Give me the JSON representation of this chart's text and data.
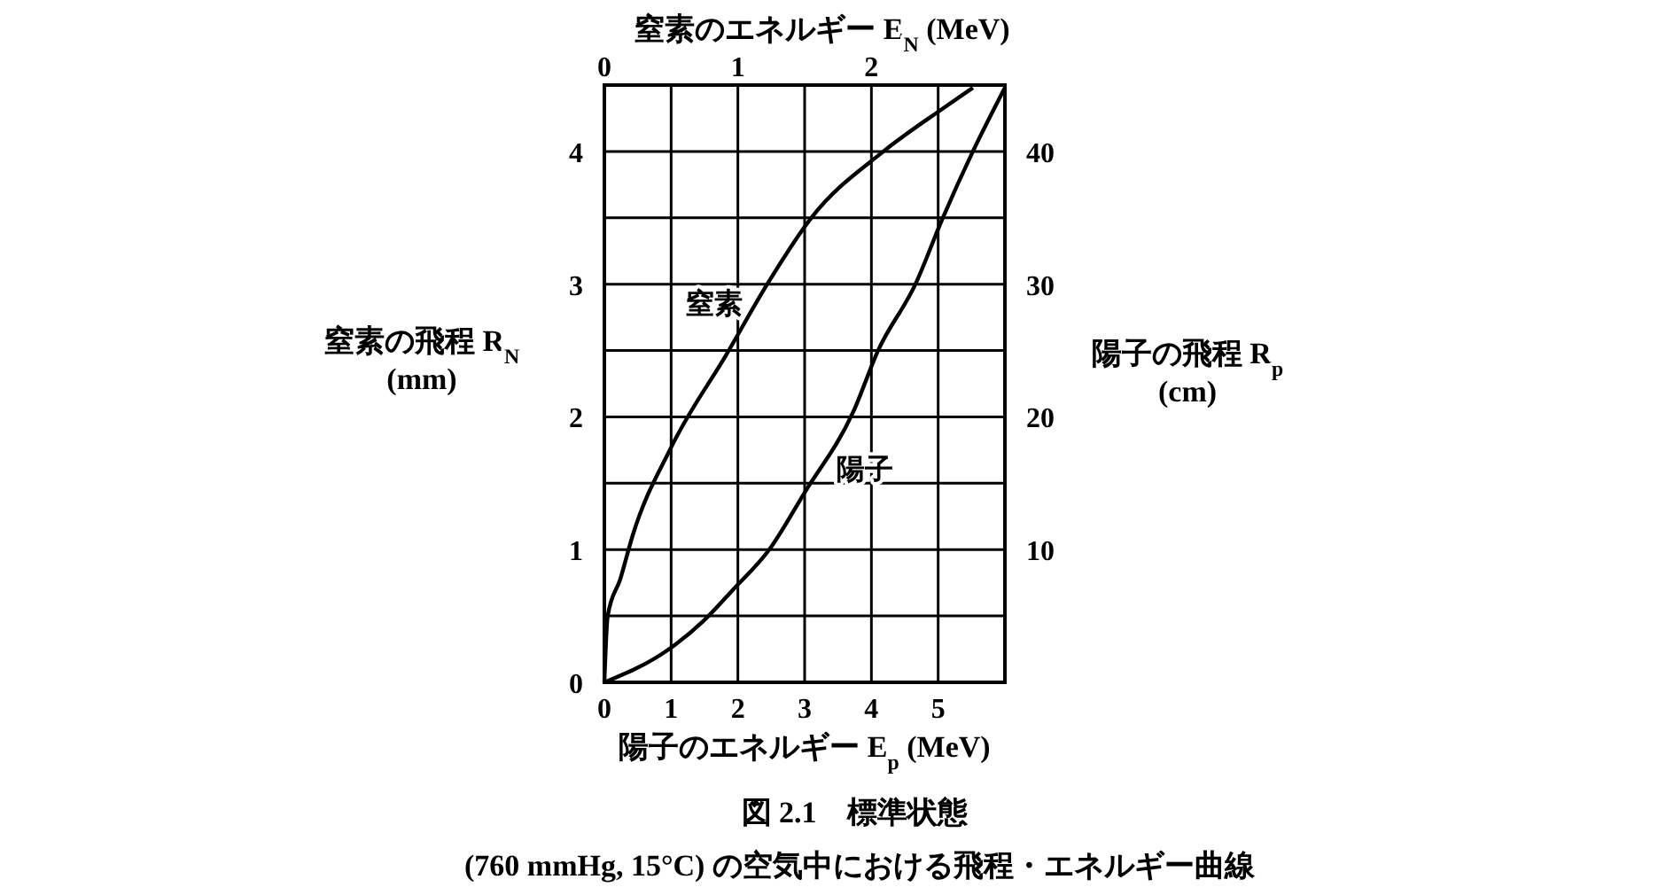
{
  "chart_data": {
    "type": "line",
    "title": "図 2.1　標準状態",
    "subtitle": "(760 mmHg, 15°C) の空気中における飛程・エネルギー曲線",
    "xlabel": "陽子のエネルギー E$_{p}$ (MeV)",
    "x2label": "窒素のエネルギー E$_{N}$ (MeV)",
    "ylabel": "窒素の飛程 R$_{N}$\n(mm)",
    "y2label": "陽子の飛程 R$_{p}$\n(cm)",
    "xlim": [
      0,
      6
    ],
    "xticks": [
      0,
      1,
      2,
      3,
      4,
      5
    ],
    "x2lim": [
      0,
      3
    ],
    "x2ticks": [
      0,
      1,
      2
    ],
    "ylim": [
      0,
      4.5
    ],
    "yticks": [
      0,
      {
        "value": 0.5,
        "label": null
      },
      1,
      {
        "value": 1.5,
        "label": null
      },
      2,
      {
        "value": 2.5,
        "label": null
      },
      3,
      {
        "value": 3.5,
        "label": null
      },
      4
    ],
    "y2lim": [
      0,
      45
    ],
    "y2ticks": [
      10,
      20,
      30,
      40
    ],
    "grid": true,
    "marker": "none",
    "line_style": "solid",
    "series": [
      {
        "name": "窒素",
        "color": "#000000",
        "axis": "x2",
        "x": [
          0,
          0.025,
          0.12,
          0.21,
          0.5,
          0.92,
          1.22,
          1.55,
          2.09,
          2.53,
          2.76
        ],
        "values": [
          0,
          0.5,
          0.78,
          1.1,
          1.77,
          2.48,
          3.0,
          3.5,
          4.0,
          4.32,
          4.48
        ]
      },
      {
        "name": "陽子",
        "color": "#000000",
        "axis": "y2",
        "x": [
          0,
          0.94,
          1.5,
          1.93,
          2.47,
          3.0,
          3.73,
          4.1,
          4.66,
          5.07,
          5.52,
          6.0
        ],
        "values": [
          0,
          2.4,
          4.7,
          7,
          10,
          14.3,
          20.4,
          25,
          30,
          35,
          40,
          44.8
        ]
      }
    ]
  }
}
